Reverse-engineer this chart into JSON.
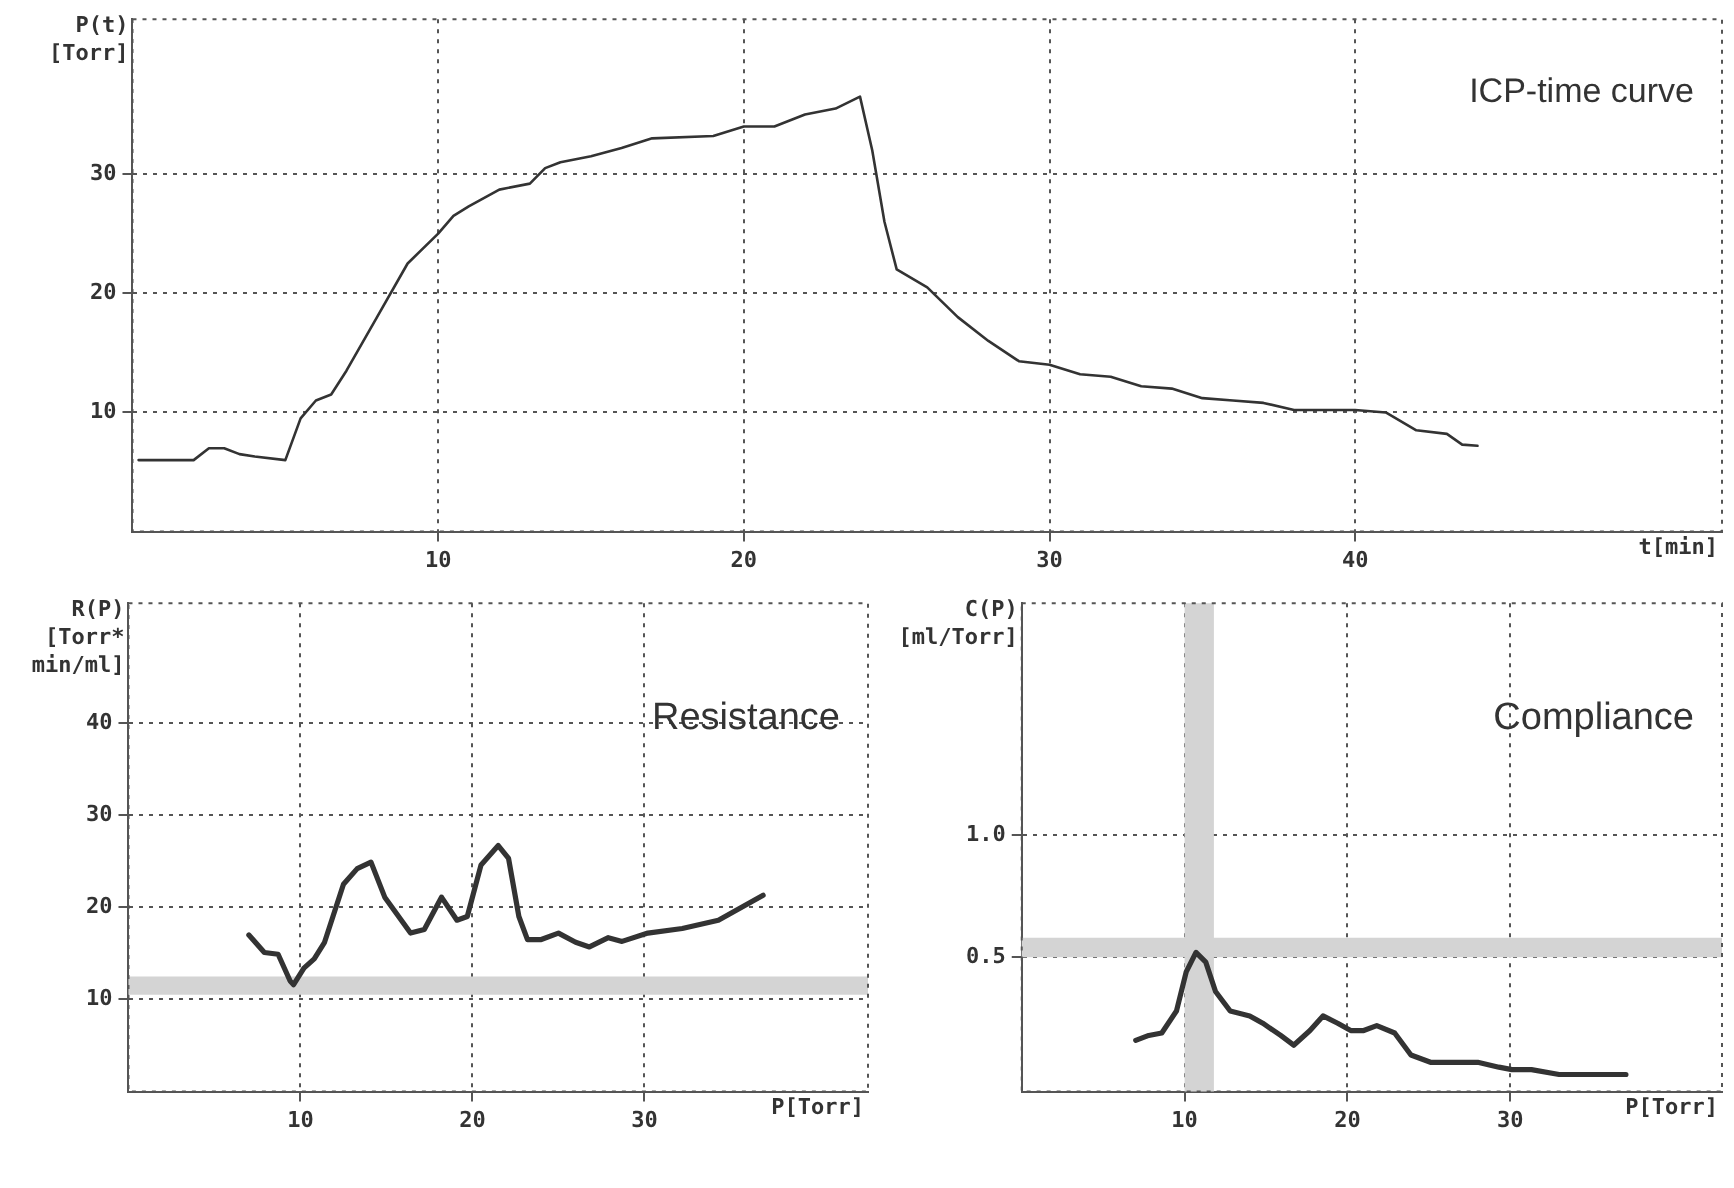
{
  "chart_data": [
    {
      "type": "line",
      "title": "ICP-time curve",
      "xlabel": "t[min]",
      "ylabel": "P(t) [Torr]",
      "xlim": [
        0,
        52
      ],
      "ylim": [
        0,
        43
      ],
      "xticks": [
        10,
        20,
        30,
        40
      ],
      "yticks": [
        10,
        20,
        30
      ],
      "grid": true,
      "color": "#333333",
      "x": [
        0.2,
        2,
        2.5,
        3,
        3.5,
        4,
        5,
        5.5,
        6,
        6.5,
        7,
        8,
        9,
        10,
        10.5,
        11,
        12,
        13,
        13.5,
        14,
        15,
        16,
        17,
        19,
        20,
        21,
        22,
        23,
        23.8,
        24.2,
        24.6,
        25,
        26,
        27,
        28,
        29,
        30,
        31,
        32,
        33,
        34,
        35,
        36,
        37,
        38,
        39,
        40,
        41,
        42,
        43,
        43.5,
        44
      ],
      "values": [
        6,
        6,
        7,
        7,
        6.5,
        6.3,
        6,
        9.5,
        11,
        11.5,
        13.5,
        18,
        22.5,
        25,
        26.5,
        27.3,
        28.7,
        29.2,
        30.5,
        31,
        31.5,
        32.2,
        33,
        33.2,
        34,
        34,
        35,
        35.5,
        36.5,
        32,
        26,
        22,
        20.5,
        18,
        16,
        14.3,
        14,
        13.2,
        13,
        12.2,
        12,
        11.2,
        11,
        10.8,
        10.2,
        10.2,
        10.2,
        10,
        8.5,
        8.2,
        7.3,
        7.2
      ]
    },
    {
      "type": "line",
      "title": "Resistance",
      "xlabel": "P[Torr]",
      "ylabel": "R(P) [Torr* min/ml]",
      "xlim": [
        0,
        43
      ],
      "ylim": [
        0,
        53
      ],
      "xticks": [
        10,
        20,
        30
      ],
      "yticks": [
        10,
        20,
        30,
        40
      ],
      "grid": true,
      "color": "#333333",
      "bands": [
        {
          "axis": "y",
          "from": 10.5,
          "to": 12.5,
          "color": "#d4d4d4"
        }
      ],
      "x": [
        7.0,
        7.9,
        8.7,
        9.4,
        9.6,
        10.2,
        10.8,
        11.4,
        12.5,
        13.3,
        14.1,
        14.9,
        16.4,
        17.2,
        18.2,
        19.1,
        19.7,
        20.5,
        21.5,
        22.1,
        22.7,
        23.2,
        24.0,
        25.0,
        26.0,
        26.8,
        27.9,
        28.7,
        30.2,
        32.2,
        34.3,
        36.9
      ],
      "values": [
        17.0,
        15.1,
        14.9,
        12.0,
        11.6,
        13.4,
        14.4,
        16.2,
        22.5,
        24.2,
        24.9,
        21.1,
        17.2,
        17.6,
        21.1,
        18.6,
        19.0,
        24.6,
        26.7,
        25.3,
        19.0,
        16.5,
        16.5,
        17.2,
        16.2,
        15.7,
        16.7,
        16.3,
        17.2,
        17.7,
        18.6,
        21.3
      ]
    },
    {
      "type": "line",
      "title": "Compliance",
      "xlabel": "P[Torr]",
      "ylabel": "C(P) [ml/Torr]",
      "xlim": [
        0,
        43
      ],
      "ylim": [
        -0.05,
        1.95
      ],
      "xticks": [
        10,
        20,
        30
      ],
      "yticks": [
        {
          "value": 0.5,
          "label": "0.5"
        },
        {
          "value": 1,
          "label": "1.0"
        }
      ],
      "grid": true,
      "color": "#333333",
      "bands": [
        {
          "axis": "y",
          "from": 0.5,
          "to": 0.58,
          "color": "#d4d4d4"
        },
        {
          "axis": "x",
          "from": 10,
          "to": 11.8,
          "color": "#d4d4d4"
        }
      ],
      "x": [
        7.0,
        7.8,
        8.6,
        9.5,
        10.1,
        10.7,
        11.3,
        11.9,
        12.8,
        14.0,
        14.8,
        15.9,
        16.7,
        17.7,
        18.5,
        19.4,
        20.2,
        21.0,
        21.8,
        22.9,
        23.9,
        25.1,
        26.8,
        28.0,
        29.3,
        30.1,
        31.3,
        33.0,
        37.1
      ],
      "values": [
        0.16,
        0.18,
        0.19,
        0.28,
        0.44,
        0.52,
        0.48,
        0.36,
        0.28,
        0.26,
        0.23,
        0.18,
        0.14,
        0.2,
        0.26,
        0.23,
        0.2,
        0.2,
        0.22,
        0.19,
        0.1,
        0.07,
        0.07,
        0.07,
        0.05,
        0.04,
        0.04,
        0.02,
        0.02
      ]
    }
  ]
}
